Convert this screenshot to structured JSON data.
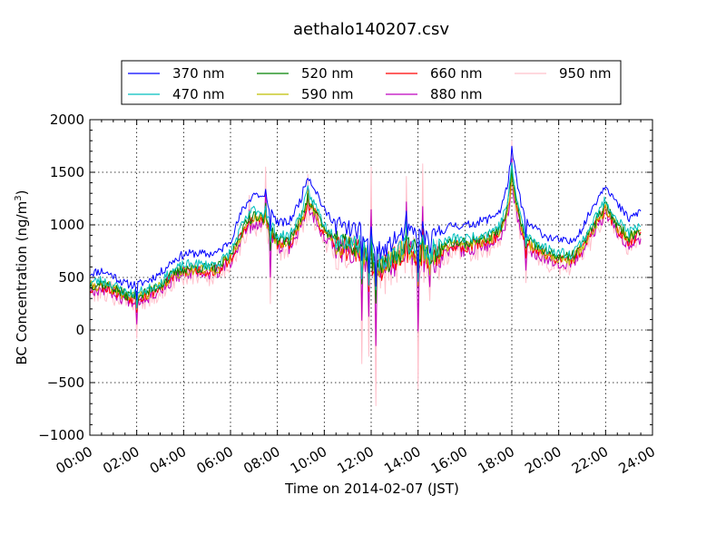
{
  "chart_data": {
    "type": "line",
    "title": "aethalo140207.csv",
    "xlabel": "Time on 2014-02-07 (JST)",
    "ylabel": "BC Concentration (ng/m",
    "ylabel_sup": "3",
    "ylabel_end": ")",
    "x_unit": "hours",
    "xlim": [
      0,
      24
    ],
    "ylim": [
      -1000,
      2000
    ],
    "x_ticks": [
      0,
      2,
      4,
      6,
      8,
      10,
      12,
      14,
      16,
      18,
      20,
      22,
      24
    ],
    "x_tick_labels": [
      "00:00",
      "02:00",
      "04:00",
      "06:00",
      "08:00",
      "10:00",
      "12:00",
      "14:00",
      "16:00",
      "18:00",
      "20:00",
      "22:00",
      "24:00"
    ],
    "y_ticks": [
      -1000,
      -500,
      0,
      500,
      1000,
      1500,
      2000
    ],
    "y_tick_labels": [
      "−1000",
      "−500",
      "0",
      "500",
      "1000",
      "1500",
      "2000"
    ],
    "grid": true,
    "legend_position": "top, outside plot",
    "legend_columns": 4,
    "base_profile": [
      [
        0,
        420
      ],
      [
        0.5,
        440
      ],
      [
        1,
        400
      ],
      [
        1.5,
        330
      ],
      [
        2,
        320
      ],
      [
        2.5,
        360
      ],
      [
        3,
        420
      ],
      [
        3.5,
        520
      ],
      [
        4,
        580
      ],
      [
        4.5,
        590
      ],
      [
        5,
        580
      ],
      [
        5.5,
        600
      ],
      [
        6,
        700
      ],
      [
        6.5,
        950
      ],
      [
        7,
        1100
      ],
      [
        7.5,
        1050
      ],
      [
        8,
        850
      ],
      [
        8.5,
        850
      ],
      [
        9,
        1050
      ],
      [
        9.3,
        1250
      ],
      [
        9.7,
        1100
      ],
      [
        10,
        950
      ],
      [
        10.5,
        850
      ],
      [
        11,
        800
      ],
      [
        11.5,
        780
      ],
      [
        12,
        650
      ],
      [
        12.5,
        600
      ],
      [
        13,
        700
      ],
      [
        13.5,
        780
      ],
      [
        14,
        750
      ],
      [
        14.5,
        700
      ],
      [
        15,
        780
      ],
      [
        15.5,
        830
      ],
      [
        16,
        820
      ],
      [
        16.5,
        850
      ],
      [
        17,
        880
      ],
      [
        17.5,
        950
      ],
      [
        17.8,
        1150
      ],
      [
        18,
        1450
      ],
      [
        18.3,
        1100
      ],
      [
        18.6,
        850
      ],
      [
        19,
        800
      ],
      [
        19.5,
        730
      ],
      [
        20,
        700
      ],
      [
        20.5,
        680
      ],
      [
        21,
        800
      ],
      [
        21.5,
        1000
      ],
      [
        22,
        1180
      ],
      [
        22.5,
        1000
      ],
      [
        23,
        880
      ],
      [
        23.5,
        950
      ],
      [
        24,
        950
      ]
    ],
    "spike_anchors": [
      [
        2.0,
        -80
      ],
      [
        6.8,
        1280
      ],
      [
        7.5,
        1550
      ],
      [
        7.7,
        250
      ],
      [
        9.3,
        1480
      ],
      [
        10.5,
        580
      ],
      [
        11.6,
        -320
      ],
      [
        11.9,
        -250
      ],
      [
        12.0,
        1550
      ],
      [
        12.2,
        -720
      ],
      [
        12.7,
        780
      ],
      [
        13.5,
        1460
      ],
      [
        14.0,
        -560
      ],
      [
        14.2,
        1580
      ],
      [
        14.5,
        280
      ],
      [
        18.0,
        1800
      ],
      [
        18.6,
        450
      ]
    ],
    "series": [
      {
        "name": "370 nm",
        "color": "#0000ff",
        "offset": 70,
        "scale": 1.12,
        "noise": 0.6,
        "seed": 11
      },
      {
        "name": "470 nm",
        "color": "#00bfbf",
        "offset": 20,
        "scale": 1.03,
        "noise": 0.7,
        "seed": 23
      },
      {
        "name": "520 nm",
        "color": "#008000",
        "offset": 5,
        "scale": 1.0,
        "noise": 0.75,
        "seed": 37
      },
      {
        "name": "590 nm",
        "color": "#bfbf00",
        "offset": 0,
        "scale": 0.98,
        "noise": 0.8,
        "seed": 41
      },
      {
        "name": "660 nm",
        "color": "#ff0000",
        "offset": -5,
        "scale": 0.97,
        "noise": 0.85,
        "seed": 53
      },
      {
        "name": "880 nm",
        "color": "#bf00bf",
        "offset": -15,
        "scale": 0.95,
        "noise": 1.0,
        "seed": 67
      },
      {
        "name": "950 nm",
        "color": "#ffc0cb",
        "offset": -25,
        "scale": 0.94,
        "noise": 1.6,
        "seed": 79
      }
    ]
  }
}
